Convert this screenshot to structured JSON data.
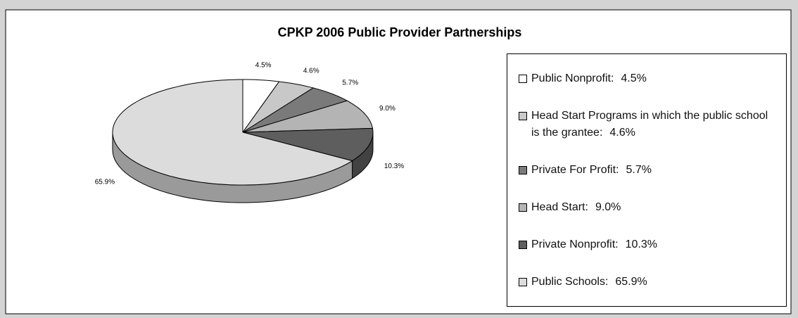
{
  "chart_data": {
    "type": "pie",
    "title": "CPKP 2006 Public Provider Partnerships",
    "categories": [
      "Public Nonprofit:",
      "Head Start Programs in which the public school is the grantee:",
      "Private For Profit:",
      "Head Start:",
      "Private Nonprofit:",
      "Public Schools:"
    ],
    "values": [
      4.5,
      4.6,
      5.7,
      9.0,
      10.3,
      65.9
    ],
    "value_labels": [
      "4.5%",
      "4.6%",
      "5.7%",
      "9.0%",
      "10.3%",
      "65.9%"
    ],
    "colors": [
      "#ffffff",
      "#c8c8c8",
      "#7a7a7a",
      "#b4b4b4",
      "#5e5e5e",
      "#dcdcdc"
    ],
    "legend": "right"
  }
}
